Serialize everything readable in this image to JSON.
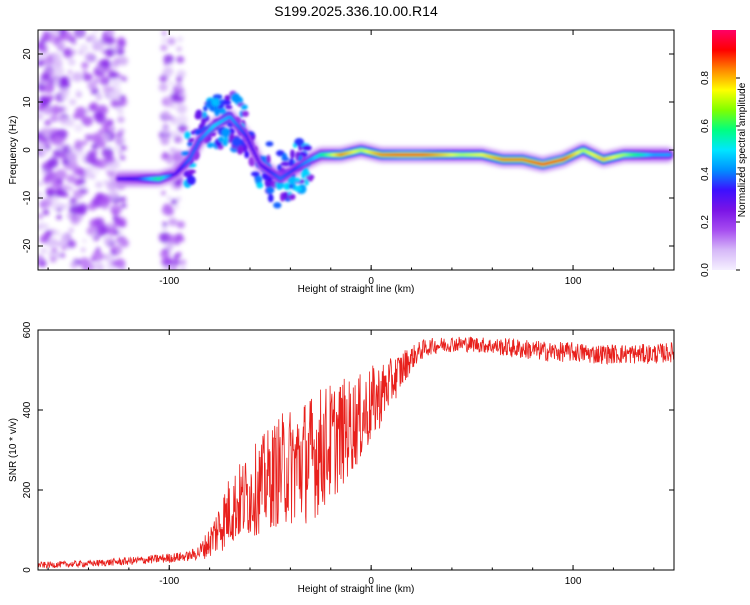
{
  "title": "S199.2025.336.10.00.R14",
  "chart_data": [
    {
      "type": "heatmap",
      "title": "S199.2025.336.10.00.R14",
      "xlabel": "Height of straight line (km)",
      "ylabel": "Frequency (Hz)",
      "xlim": [
        -165,
        150
      ],
      "ylim": [
        -25,
        25
      ],
      "x_ticks": [
        -100,
        0,
        100
      ],
      "x_tick_labels": [
        "-100",
        "0",
        "100"
      ],
      "y_ticks": [
        -20,
        -10,
        0,
        10,
        20
      ],
      "y_tick_labels": [
        "-20",
        "-10",
        "0",
        "10",
        "20"
      ],
      "colorbar": {
        "label": "Normalized spectral amplitude",
        "range": [
          0,
          1
        ],
        "ticks": [
          0.0,
          0.2,
          0.4,
          0.6,
          0.8
        ],
        "tick_labels": [
          "0.0",
          "0.2",
          "0.4",
          "0.6",
          "0.8"
        ],
        "colors": [
          "#f5f0ff",
          "#d6b8f8",
          "#a64cf0",
          "#7a14e6",
          "#3c10ff",
          "#0090ff",
          "#00e6ff",
          "#00ff80",
          "#80ff00",
          "#ffff00",
          "#ff8800",
          "#ff0000",
          "#ff0066"
        ]
      },
      "ridge": {
        "x": [
          -125,
          -115,
          -105,
          -97,
          -90,
          -85,
          -78,
          -70,
          -62,
          -55,
          -45,
          -38,
          -30,
          -25,
          -15,
          -5,
          5,
          15,
          25,
          35,
          45,
          55,
          65,
          75,
          85,
          95,
          100,
          105,
          115,
          125,
          140,
          148
        ],
        "freq": [
          -6,
          -6,
          -6,
          -5,
          -2,
          2,
          5,
          7,
          3,
          -3,
          -6,
          -4,
          -2,
          -1,
          -1,
          0,
          -1,
          -1,
          -1,
          -1,
          -1,
          -1,
          -2,
          -2,
          -3,
          -2,
          -1,
          0,
          -2,
          -1,
          -1,
          -1
        ],
        "amplitude": [
          0.3,
          0.35,
          0.6,
          0.3,
          0.4,
          0.4,
          0.5,
          0.45,
          0.35,
          0.3,
          0.4,
          0.35,
          0.45,
          0.55,
          0.85,
          0.7,
          0.85,
          0.9,
          0.9,
          0.8,
          0.7,
          0.75,
          0.85,
          0.85,
          0.9,
          0.9,
          0.8,
          0.7,
          0.8,
          0.7,
          0.45,
          0.45
        ]
      },
      "noise_region": [
        -165,
        -92
      ]
    },
    {
      "type": "line",
      "title": "",
      "xlabel": "Height of straight line (km)",
      "ylabel": "SNR (10 * v/v)",
      "xlim": [
        -165,
        150
      ],
      "ylim": [
        0,
        600
      ],
      "x_ticks": [
        -100,
        0,
        100
      ],
      "x_tick_labels": [
        "-100",
        "0",
        "100"
      ],
      "y_ticks": [
        0,
        200,
        400,
        600
      ],
      "y_tick_labels": [
        "0",
        "200",
        "400",
        "600"
      ],
      "series": [
        {
          "name": "SNR",
          "color": "#e8201c",
          "x": [
            -165,
            -140,
            -120,
            -100,
            -90,
            -85,
            -80,
            -75,
            -70,
            -65,
            -60,
            -55,
            -50,
            -45,
            -40,
            -35,
            -30,
            -25,
            -20,
            -15,
            -10,
            -5,
            0,
            5,
            10,
            15,
            20,
            25,
            30,
            40,
            50,
            60,
            70,
            80,
            90,
            100,
            110,
            120,
            130,
            140,
            150
          ],
          "mean": [
            12,
            16,
            22,
            30,
            35,
            45,
            70,
            110,
            150,
            170,
            190,
            210,
            230,
            250,
            260,
            270,
            280,
            300,
            320,
            340,
            360,
            380,
            410,
            440,
            470,
            500,
            530,
            550,
            560,
            565,
            565,
            560,
            555,
            550,
            545,
            545,
            540,
            540,
            540,
            540,
            545
          ],
          "spread": [
            8,
            8,
            10,
            12,
            12,
            20,
            40,
            70,
            90,
            100,
            110,
            120,
            130,
            140,
            150,
            160,
            160,
            160,
            150,
            140,
            120,
            110,
            100,
            80,
            60,
            50,
            30,
            25,
            20,
            20,
            20,
            20,
            25,
            25,
            25,
            25,
            25,
            25,
            25,
            25,
            25
          ]
        }
      ]
    }
  ]
}
